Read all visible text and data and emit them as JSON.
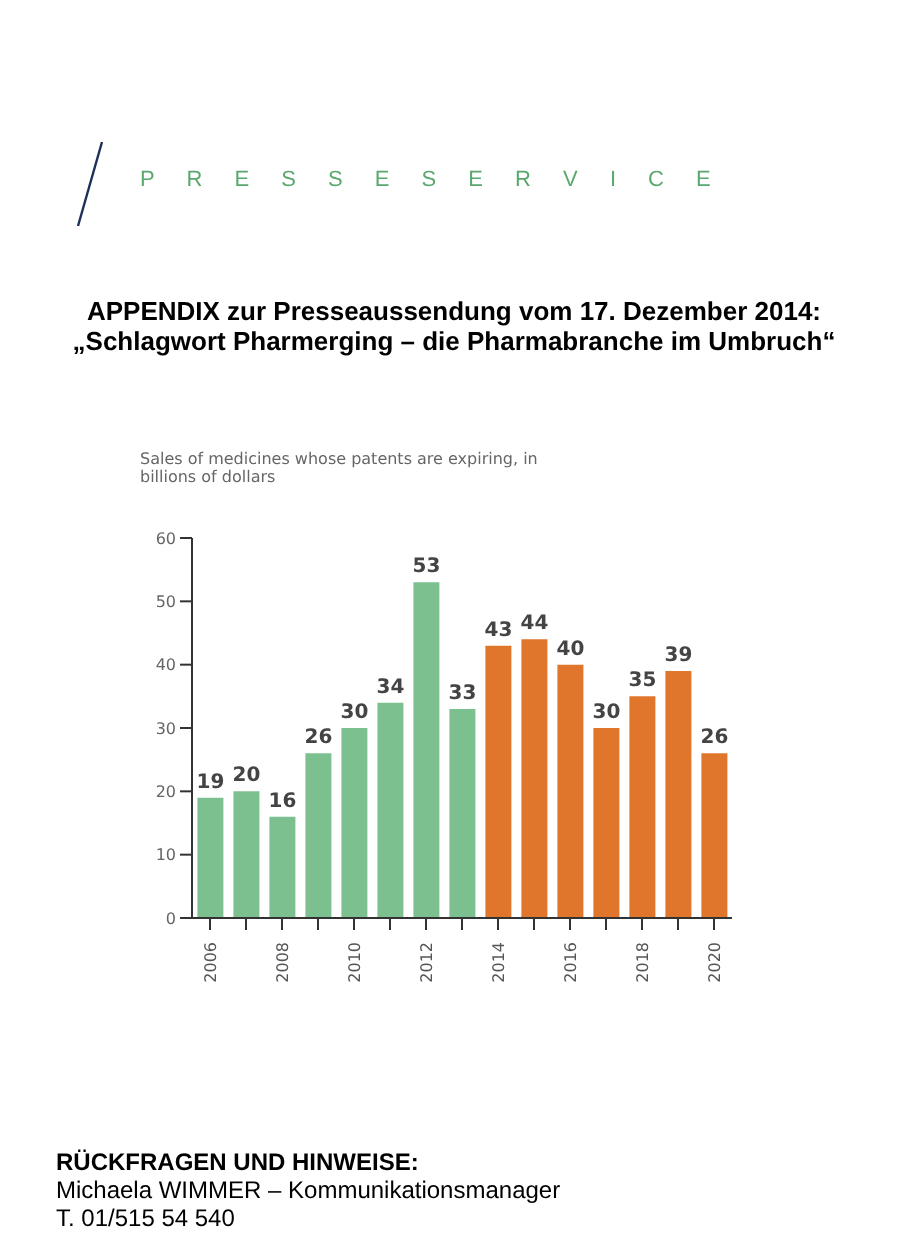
{
  "chart_data": {
    "type": "bar",
    "title": "APPENDIX zur Presseaussendung vom 17. Dezember 2014:",
    "subtitle": "„Schlagwort Pharmerging – die Pharmabranche im Umbruch“",
    "ylabel": "Sales of medicines whose patents are expiring, in billions of dollars",
    "annotations": [
      "P R E S S E S E R V I C E",
      "RÜCKFRAGEN UND HINWEISE:",
      "Michaela WIMMER – Kommunikationsmanager",
      "T. 01/515 54 540"
    ],
    "categories": [
      "2006",
      null,
      "2008",
      null,
      "2010",
      null,
      "2012",
      null,
      "2014",
      null,
      "2016",
      null,
      "2018",
      null,
      "2020"
    ],
    "values": [
      19,
      20,
      16,
      26,
      30,
      34,
      53,
      33,
      43,
      44,
      40,
      30,
      35,
      39,
      26
    ],
    "colors": [
      "#7dc08f",
      "#7dc08f",
      "#7dc08f",
      "#7dc08f",
      "#7dc08f",
      "#7dc08f",
      "#7dc08f",
      "#7dc08f",
      "#e0762c",
      "#e0762c",
      "#e0762c",
      "#e0762c",
      "#e0762c",
      "#e0762c",
      "#e0762c"
    ],
    "ylim": [
      0,
      60
    ],
    "yticks": [
      0,
      10,
      20,
      30,
      40,
      50,
      60
    ],
    "data_labels": true
  }
}
